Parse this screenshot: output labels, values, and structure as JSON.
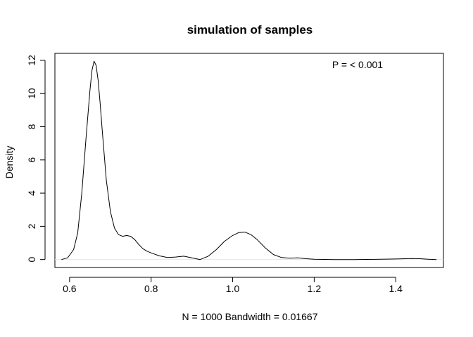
{
  "chart_data": {
    "type": "line",
    "title": "simulation of samples",
    "xlabel": "N = 1000   Bandwidth = 0.01667",
    "ylabel": "Density",
    "annotation": "P = < 0.001",
    "xlim": [
      0.564,
      1.517
    ],
    "ylim": [
      -0.48,
      12.42
    ],
    "x_ticks": [
      0.6,
      0.8,
      1.0,
      1.2,
      1.4
    ],
    "x_tick_labels": [
      "0.6",
      "0.8",
      "1.0",
      "1.2",
      "1.4"
    ],
    "y_ticks": [
      0,
      2,
      4,
      6,
      8,
      10,
      12
    ],
    "y_tick_labels": [
      "0",
      "2",
      "4",
      "6",
      "8",
      "10",
      "12"
    ],
    "grid": false,
    "baseline_color": "#e6e6e6",
    "line_color": "#000000",
    "series": [
      {
        "x": [
          0.58,
          0.595,
          0.61,
          0.62,
          0.63,
          0.64,
          0.65,
          0.655,
          0.66,
          0.665,
          0.67,
          0.675,
          0.68,
          0.69,
          0.7,
          0.71,
          0.72,
          0.73,
          0.74,
          0.75,
          0.76,
          0.77,
          0.78,
          0.79,
          0.8,
          0.82,
          0.84,
          0.86,
          0.88,
          0.9,
          0.92,
          0.94,
          0.96,
          0.98,
          1.0,
          1.015,
          1.03,
          1.045,
          1.06,
          1.08,
          1.1,
          1.12,
          1.14,
          1.16,
          1.18,
          1.2,
          1.25,
          1.3,
          1.35,
          1.4,
          1.44,
          1.46,
          1.48,
          1.5
        ],
        "y": [
          0.0,
          0.1,
          0.6,
          1.6,
          4.0,
          7.2,
          10.2,
          11.4,
          11.95,
          11.7,
          10.8,
          9.4,
          7.8,
          4.8,
          2.9,
          1.9,
          1.5,
          1.4,
          1.45,
          1.4,
          1.2,
          0.9,
          0.65,
          0.5,
          0.4,
          0.22,
          0.12,
          0.15,
          0.2,
          0.1,
          0.0,
          0.2,
          0.6,
          1.1,
          1.45,
          1.62,
          1.65,
          1.5,
          1.2,
          0.7,
          0.3,
          0.12,
          0.08,
          0.1,
          0.05,
          0.02,
          0.0,
          0.0,
          0.01,
          0.03,
          0.06,
          0.05,
          0.02,
          0.0
        ]
      }
    ]
  }
}
